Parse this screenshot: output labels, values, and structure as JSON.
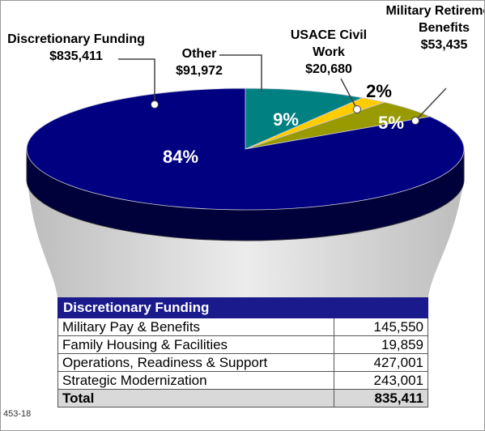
{
  "chart_data": {
    "type": "pie",
    "series": [
      {
        "name": "Other",
        "color": "#008080",
        "values": [
          9
        ],
        "value_labels": [
          "9%"
        ],
        "amount": 91972,
        "amount_label": "$91,972"
      },
      {
        "name": "USACE Civil Work",
        "color": "#ffcc00",
        "values": [
          2
        ],
        "value_labels": [
          "2%"
        ],
        "amount": 20680,
        "amount_label": "$20,680"
      },
      {
        "name": "Military Retirement Benefits",
        "color": "#999900",
        "values": [
          5
        ],
        "value_labels": [
          "5%"
        ],
        "amount": 53435,
        "amount_label": "$53,435"
      },
      {
        "name": "Discretionary Funding",
        "color": "#000080",
        "values": [
          84
        ],
        "value_labels": [
          "84%"
        ],
        "amount": 835411,
        "amount_label": "$835,411"
      }
    ]
  },
  "table": {
    "header": "Discretionary Funding",
    "rows": [
      [
        "Military Pay & Benefits",
        "145,550"
      ],
      [
        "Family Housing & Facilities",
        "19,859"
      ],
      [
        "Operations, Readiness & Support",
        "427,001"
      ],
      [
        "Strategic Modernization",
        "243,001"
      ]
    ],
    "total": [
      "Total",
      "835,411"
    ]
  },
  "footer": "453-18"
}
